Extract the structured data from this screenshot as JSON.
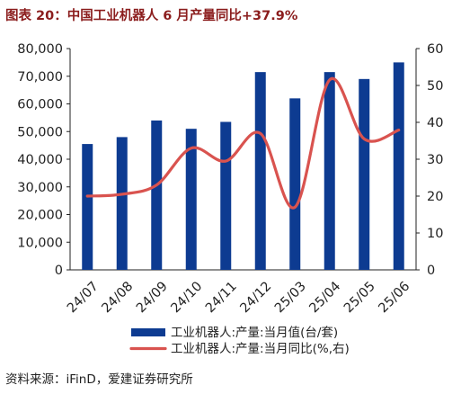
{
  "title": "图表 20：中国工业机器人 6 月产量同比+37.9%",
  "source": "资料来源：iFinD，爱建证券研究所",
  "colors": {
    "bar": "#0d3b91",
    "line": "#d9534f",
    "title": "#8b1d1d",
    "axis": "#222222"
  },
  "chart_data": {
    "type": "bar",
    "categories": [
      "24/07",
      "24/08",
      "24/09",
      "24/10",
      "24/11",
      "24/12",
      "25/03",
      "25/04",
      "25/05",
      "25/06"
    ],
    "left_ylim": [
      0,
      80000
    ],
    "left_ticks": [
      "0",
      "10,000",
      "20,000",
      "30,000",
      "40,000",
      "50,000",
      "60,000",
      "70,000",
      "80,000"
    ],
    "right_ylim": [
      0,
      60
    ],
    "right_ticks": [
      "0",
      "10",
      "20",
      "30",
      "40",
      "50",
      "60"
    ],
    "grid": false,
    "legend_position": "bottom",
    "series": [
      {
        "name": "工业机器人:产量:当月值(台/套)",
        "type": "bar",
        "axis": "left",
        "values": [
          45500,
          48000,
          54000,
          51000,
          53500,
          71500,
          62000,
          71500,
          69000,
          75000
        ]
      },
      {
        "name": "工业机器人:产量:当月同比(%,右)",
        "type": "line",
        "axis": "right",
        "values": [
          20,
          20.5,
          23,
          33,
          29.5,
          37,
          17,
          51.5,
          35.5,
          37.9
        ]
      }
    ]
  }
}
